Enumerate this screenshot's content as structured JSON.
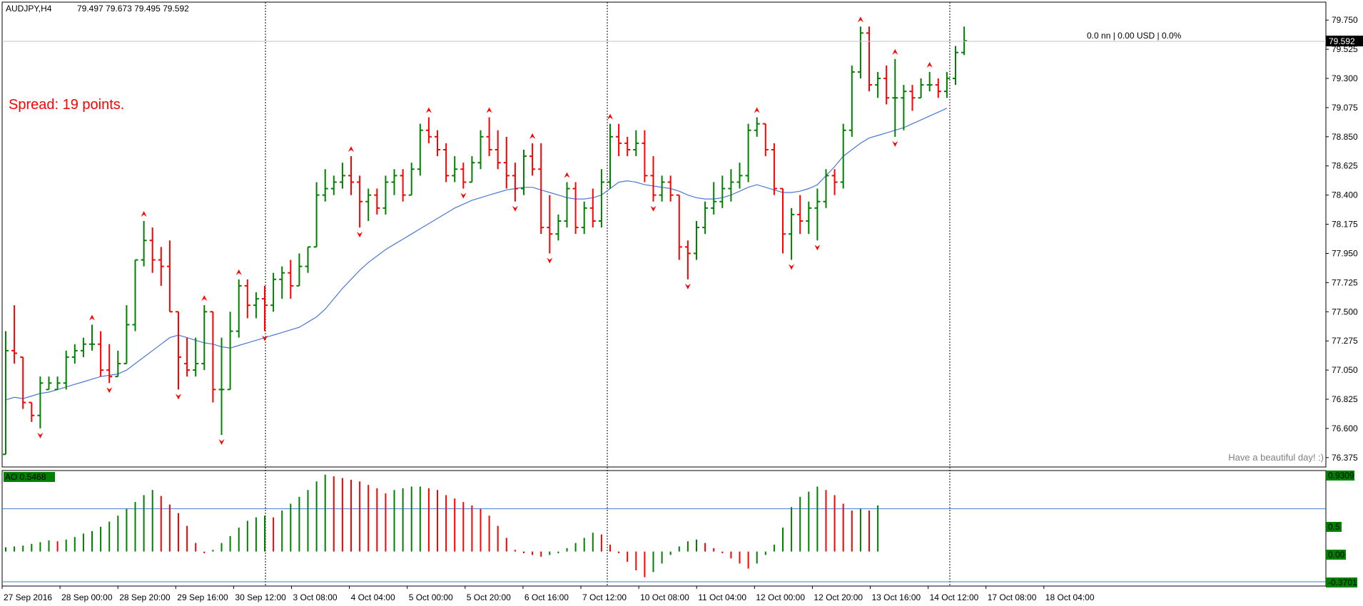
{
  "header": {
    "symbol": "AUDJPY,H4",
    "ohlc": "79.497 79.673 79.495 79.592"
  },
  "spread_label": "Spread: 19 points.",
  "position_info": "0.0 nn | 0.00 USD | 0.0%",
  "greeting": "Have a beautiful day! :)",
  "current_price_label": "79.592",
  "ao": {
    "label": "AO 0.5468",
    "max_label": "0.9309",
    "level_label": "0.5",
    "zero_label": "0.00",
    "min_label": "-0.3701"
  },
  "colors": {
    "bull": "#008000",
    "bear": "#ff0000",
    "ma": "#4a78d6",
    "grid": "#000000",
    "label_bg": "#000000"
  },
  "chart_data": [
    {
      "type": "ohlc",
      "title": "AUDJPY,H4",
      "ylim": [
        76.33,
        79.85
      ],
      "yticks": [
        "79.750",
        "79.525",
        "79.300",
        "79.075",
        "78.850",
        "78.625",
        "78.400",
        "78.175",
        "77.950",
        "77.725",
        "77.500",
        "77.275",
        "77.050",
        "76.825",
        "76.600",
        "76.375"
      ],
      "xticks": [
        "27 Sep 2016",
        "28 Sep 00:00",
        "28 Sep 20:00",
        "29 Sep 16:00",
        "30 Sep 12:00",
        "3 Oct 08:00",
        "4 Oct 04:00",
        "5 Oct 00:00",
        "5 Oct 20:00",
        "6 Oct 16:00",
        "7 Oct 12:00",
        "10 Oct 08:00",
        "11 Oct 04:00",
        "12 Oct 00:00",
        "12 Oct 20:00",
        "13 Oct 16:00",
        "14 Oct 12:00",
        "17 Oct 08:00",
        "18 Oct 04:00"
      ],
      "bars": [
        [
          76.4,
          77.35,
          76.4,
          77.2
        ],
        [
          77.2,
          77.55,
          77.1,
          77.18
        ],
        [
          77.15,
          77.15,
          76.75,
          76.8
        ],
        [
          76.8,
          76.8,
          76.65,
          76.7
        ],
        [
          76.7,
          77.0,
          76.6,
          76.95
        ],
        [
          76.9,
          77.0,
          76.9,
          76.95
        ],
        [
          76.9,
          77.0,
          76.9,
          76.95
        ],
        [
          76.95,
          77.2,
          76.9,
          77.15
        ],
        [
          77.15,
          77.25,
          77.1,
          77.2
        ],
        [
          77.2,
          77.3,
          77.15,
          77.25
        ],
        [
          77.25,
          77.4,
          77.2,
          77.25
        ],
        [
          77.25,
          77.35,
          77.0,
          77.05
        ],
        [
          77.05,
          77.25,
          76.95,
          77.0
        ],
        [
          77.0,
          77.2,
          77.0,
          77.1
        ],
        [
          77.1,
          77.55,
          77.1,
          77.4
        ],
        [
          77.4,
          77.9,
          77.35,
          77.9
        ],
        [
          77.9,
          78.2,
          77.85,
          78.05
        ],
        [
          78.05,
          78.15,
          77.8,
          77.9
        ],
        [
          77.9,
          78.0,
          77.7,
          77.85
        ],
        [
          77.85,
          78.05,
          77.5,
          77.5
        ],
        [
          77.5,
          77.5,
          76.9,
          77.15
        ],
        [
          77.1,
          77.3,
          77.0,
          77.05
        ],
        [
          77.05,
          77.3,
          77.0,
          77.1
        ],
        [
          77.1,
          77.55,
          77.05,
          77.5
        ],
        [
          77.5,
          77.5,
          76.8,
          76.9
        ],
        [
          76.9,
          77.3,
          76.55,
          76.9
        ],
        [
          76.9,
          77.5,
          76.9,
          77.35
        ],
        [
          77.35,
          77.75,
          77.3,
          77.7
        ],
        [
          77.7,
          77.75,
          77.45,
          77.55
        ],
        [
          77.55,
          77.65,
          77.45,
          77.6
        ],
        [
          77.6,
          77.7,
          77.35,
          77.55
        ],
        [
          77.55,
          77.8,
          77.5,
          77.75
        ],
        [
          77.75,
          77.85,
          77.6,
          77.8
        ],
        [
          77.8,
          77.9,
          77.6,
          77.7
        ],
        [
          77.7,
          77.95,
          77.7,
          77.85
        ],
        [
          77.85,
          78.0,
          77.8,
          78.0
        ],
        [
          78.0,
          78.5,
          78.0,
          78.4
        ],
        [
          78.4,
          78.6,
          78.35,
          78.45
        ],
        [
          78.45,
          78.55,
          78.4,
          78.5
        ],
        [
          78.5,
          78.65,
          78.45,
          78.55
        ],
        [
          78.55,
          78.7,
          78.4,
          78.5
        ],
        [
          78.5,
          78.55,
          78.15,
          78.35
        ],
        [
          78.35,
          78.45,
          78.2,
          78.4
        ],
        [
          78.4,
          78.45,
          78.25,
          78.3
        ],
        [
          78.3,
          78.55,
          78.25,
          78.5
        ],
        [
          78.5,
          78.6,
          78.4,
          78.55
        ],
        [
          78.55,
          78.6,
          78.35,
          78.4
        ],
        [
          78.4,
          78.65,
          78.4,
          78.6
        ],
        [
          78.6,
          78.95,
          78.55,
          78.9
        ],
        [
          78.9,
          79.0,
          78.8,
          78.85
        ],
        [
          78.85,
          78.9,
          78.7,
          78.75
        ],
        [
          78.75,
          78.8,
          78.5,
          78.55
        ],
        [
          78.55,
          78.7,
          78.5,
          78.6
        ],
        [
          78.6,
          78.65,
          78.45,
          78.5
        ],
        [
          78.5,
          78.7,
          78.5,
          78.65
        ],
        [
          78.65,
          78.9,
          78.6,
          78.85
        ],
        [
          78.85,
          79.0,
          78.7,
          78.75
        ],
        [
          78.75,
          78.9,
          78.6,
          78.65
        ],
        [
          78.65,
          78.85,
          78.45,
          78.55
        ],
        [
          78.55,
          78.65,
          78.35,
          78.45
        ],
        [
          78.45,
          78.75,
          78.4,
          78.7
        ],
        [
          78.7,
          78.8,
          78.55,
          78.6
        ],
        [
          78.6,
          78.8,
          78.1,
          78.15
        ],
        [
          78.15,
          78.4,
          77.95,
          78.1
        ],
        [
          78.1,
          78.25,
          78.05,
          78.2
        ],
        [
          78.2,
          78.5,
          78.15,
          78.45
        ],
        [
          78.45,
          78.5,
          78.1,
          78.15
        ],
        [
          78.15,
          78.35,
          78.1,
          78.3
        ],
        [
          78.3,
          78.45,
          78.15,
          78.2
        ],
        [
          78.2,
          78.6,
          78.15,
          78.5
        ],
        [
          78.5,
          78.95,
          78.45,
          78.85
        ],
        [
          78.85,
          78.95,
          78.7,
          78.8
        ],
        [
          78.8,
          78.85,
          78.7,
          78.75
        ],
        [
          78.75,
          78.9,
          78.7,
          78.8
        ],
        [
          78.8,
          78.9,
          78.5,
          78.55
        ],
        [
          78.55,
          78.7,
          78.35,
          78.4
        ],
        [
          78.4,
          78.55,
          78.35,
          78.5
        ],
        [
          78.5,
          78.55,
          78.35,
          78.4
        ],
        [
          78.4,
          78.4,
          77.9,
          78.0
        ],
        [
          78.0,
          78.05,
          77.75,
          77.95
        ],
        [
          77.95,
          78.2,
          77.9,
          78.15
        ],
        [
          78.15,
          78.35,
          78.1,
          78.3
        ],
        [
          78.3,
          78.5,
          78.25,
          78.35
        ],
        [
          78.35,
          78.55,
          78.3,
          78.45
        ],
        [
          78.45,
          78.6,
          78.35,
          78.5
        ],
        [
          78.5,
          78.65,
          78.45,
          78.55
        ],
        [
          78.55,
          78.95,
          78.5,
          78.9
        ],
        [
          78.9,
          79.0,
          78.85,
          78.95
        ],
        [
          78.95,
          78.95,
          78.7,
          78.75
        ],
        [
          78.75,
          78.8,
          78.4,
          78.45
        ],
        [
          78.45,
          78.45,
          77.95,
          78.1
        ],
        [
          78.1,
          78.3,
          77.9,
          78.25
        ],
        [
          78.25,
          78.4,
          78.1,
          78.2
        ],
        [
          78.2,
          78.35,
          78.1,
          78.3
        ],
        [
          78.3,
          78.45,
          78.05,
          78.35
        ],
        [
          78.35,
          78.6,
          78.3,
          78.55
        ],
        [
          78.55,
          78.6,
          78.4,
          78.5
        ],
        [
          78.5,
          78.95,
          78.45,
          78.9
        ],
        [
          78.9,
          79.4,
          78.85,
          79.35
        ],
        [
          79.35,
          79.7,
          79.3,
          79.65
        ],
        [
          79.65,
          79.7,
          79.2,
          79.25
        ],
        [
          79.25,
          79.35,
          79.15,
          79.3
        ],
        [
          79.3,
          79.4,
          79.1,
          79.15
        ],
        [
          79.15,
          79.45,
          78.85,
          79.15
        ],
        [
          79.15,
          79.25,
          78.9,
          79.2
        ],
        [
          79.2,
          79.25,
          79.05,
          79.15
        ],
        [
          79.15,
          79.3,
          79.15,
          79.25
        ],
        [
          79.25,
          79.35,
          79.2,
          79.25
        ],
        [
          79.25,
          79.3,
          79.15,
          79.2
        ],
        [
          79.2,
          79.35,
          79.15,
          79.3
        ],
        [
          79.3,
          79.55,
          79.25,
          79.5
        ],
        [
          79.5,
          79.7,
          79.48,
          79.59
        ]
      ],
      "ma": [
        76.82,
        76.84,
        76.83,
        76.85,
        76.87,
        76.88,
        76.9,
        76.92,
        76.94,
        76.96,
        76.98,
        77.0,
        77.01,
        77.02,
        77.05,
        77.1,
        77.15,
        77.2,
        77.25,
        77.3,
        77.32,
        77.3,
        77.28,
        77.26,
        77.25,
        77.23,
        77.22,
        77.24,
        77.26,
        77.28,
        77.3,
        77.32,
        77.34,
        77.36,
        77.38,
        77.42,
        77.46,
        77.52,
        77.6,
        77.68,
        77.75,
        77.82,
        77.88,
        77.93,
        77.98,
        78.02,
        78.06,
        78.1,
        78.14,
        78.18,
        78.22,
        78.26,
        78.3,
        78.33,
        78.36,
        78.38,
        78.4,
        78.42,
        78.44,
        78.45,
        78.46,
        78.46,
        78.44,
        78.42,
        78.4,
        78.38,
        78.37,
        78.37,
        78.38,
        78.4,
        78.45,
        78.5,
        78.51,
        78.5,
        78.48,
        78.47,
        78.46,
        78.45,
        78.43,
        78.4,
        78.38,
        78.37,
        78.37,
        78.38,
        78.4,
        78.43,
        78.46,
        78.48,
        78.46,
        78.44,
        78.42,
        78.42,
        78.43,
        78.45,
        78.48,
        78.55,
        78.62,
        78.7,
        78.75,
        78.8,
        78.84,
        78.86,
        78.88,
        78.9,
        78.92,
        78.95,
        78.98,
        79.01,
        79.04,
        79.07
      ]
    },
    {
      "type": "bar",
      "title": "AO 0.5468",
      "ylim": [
        -0.3701,
        0.9309
      ],
      "values": [
        0.05,
        0.06,
        0.07,
        0.09,
        0.11,
        0.13,
        0.12,
        0.14,
        0.17,
        0.21,
        0.24,
        0.29,
        0.35,
        0.42,
        0.5,
        0.58,
        0.66,
        0.72,
        0.65,
        0.55,
        0.45,
        0.3,
        0.1,
        -0.02,
        0.02,
        0.1,
        0.18,
        0.28,
        0.36,
        0.4,
        0.42,
        0.4,
        0.48,
        0.56,
        0.64,
        0.72,
        0.82,
        0.9,
        0.88,
        0.86,
        0.84,
        0.82,
        0.78,
        0.74,
        0.68,
        0.72,
        0.74,
        0.76,
        0.76,
        0.74,
        0.72,
        0.66,
        0.62,
        0.58,
        0.54,
        0.5,
        0.42,
        0.3,
        0.16,
        0.02,
        -0.02,
        -0.04,
        -0.06,
        -0.04,
        -0.02,
        0.04,
        0.1,
        0.16,
        0.22,
        0.2,
        0.08,
        -0.02,
        -0.12,
        -0.22,
        -0.3,
        -0.24,
        -0.14,
        -0.04,
        0.06,
        0.12,
        0.14,
        0.1,
        0.04,
        -0.02,
        -0.08,
        -0.14,
        -0.2,
        -0.14,
        -0.04,
        0.08,
        0.28,
        0.52,
        0.64,
        0.7,
        0.76,
        0.72,
        0.66,
        0.56,
        0.48,
        0.5,
        0.48,
        0.54
      ]
    }
  ]
}
